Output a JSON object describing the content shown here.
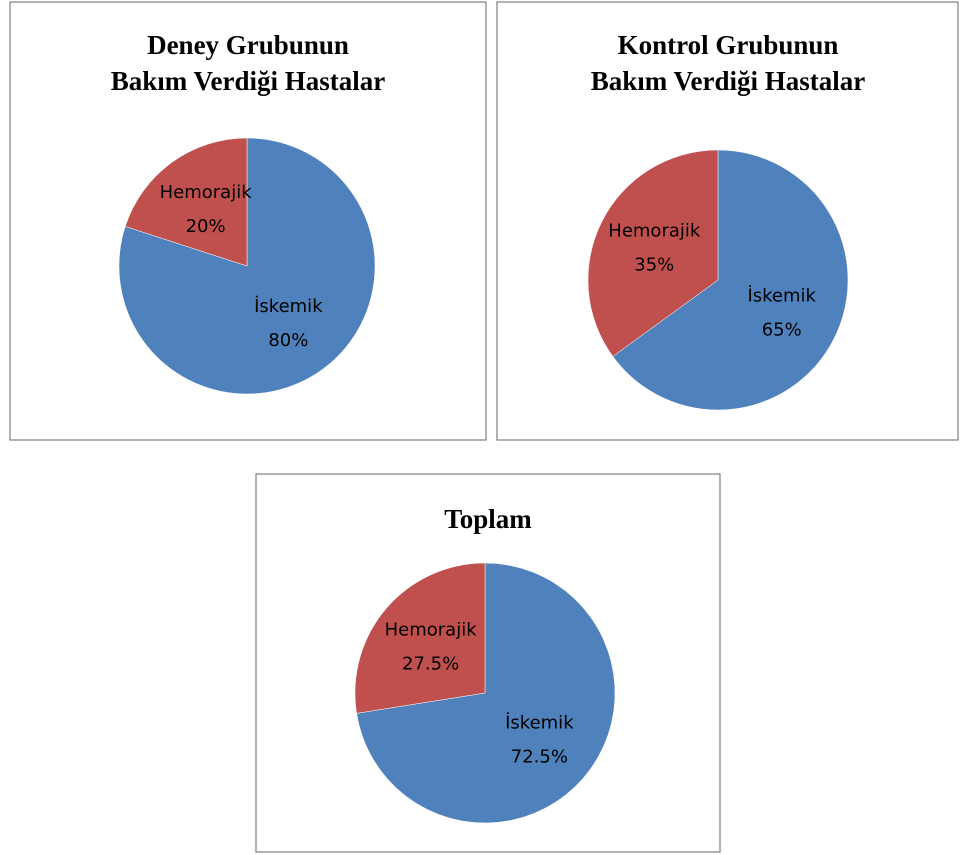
{
  "chart_data": [
    {
      "type": "pie",
      "title": [
        "Deney Grubunun",
        "Bakım Verdiği Hastalar"
      ],
      "categories": [
        "İskemik",
        "Hemorajik"
      ],
      "values": [
        80,
        20
      ],
      "value_labels": [
        "80%",
        "20%"
      ],
      "colors": [
        "#4f81bd",
        "#c0504d"
      ]
    },
    {
      "type": "pie",
      "title": [
        "Kontrol Grubunun",
        "Bakım Verdiği Hastalar"
      ],
      "categories": [
        "İskemik",
        "Hemorajik"
      ],
      "values": [
        65,
        35
      ],
      "value_labels": [
        "65%",
        "35%"
      ],
      "colors": [
        "#4f81bd",
        "#c0504d"
      ]
    },
    {
      "type": "pie",
      "title": [
        "Toplam"
      ],
      "categories": [
        "İskemik",
        "Hemorajik"
      ],
      "values": [
        72.5,
        27.5
      ],
      "value_labels": [
        "72.5%",
        "27.5%"
      ],
      "colors": [
        "#4f81bd",
        "#c0504d"
      ]
    }
  ]
}
